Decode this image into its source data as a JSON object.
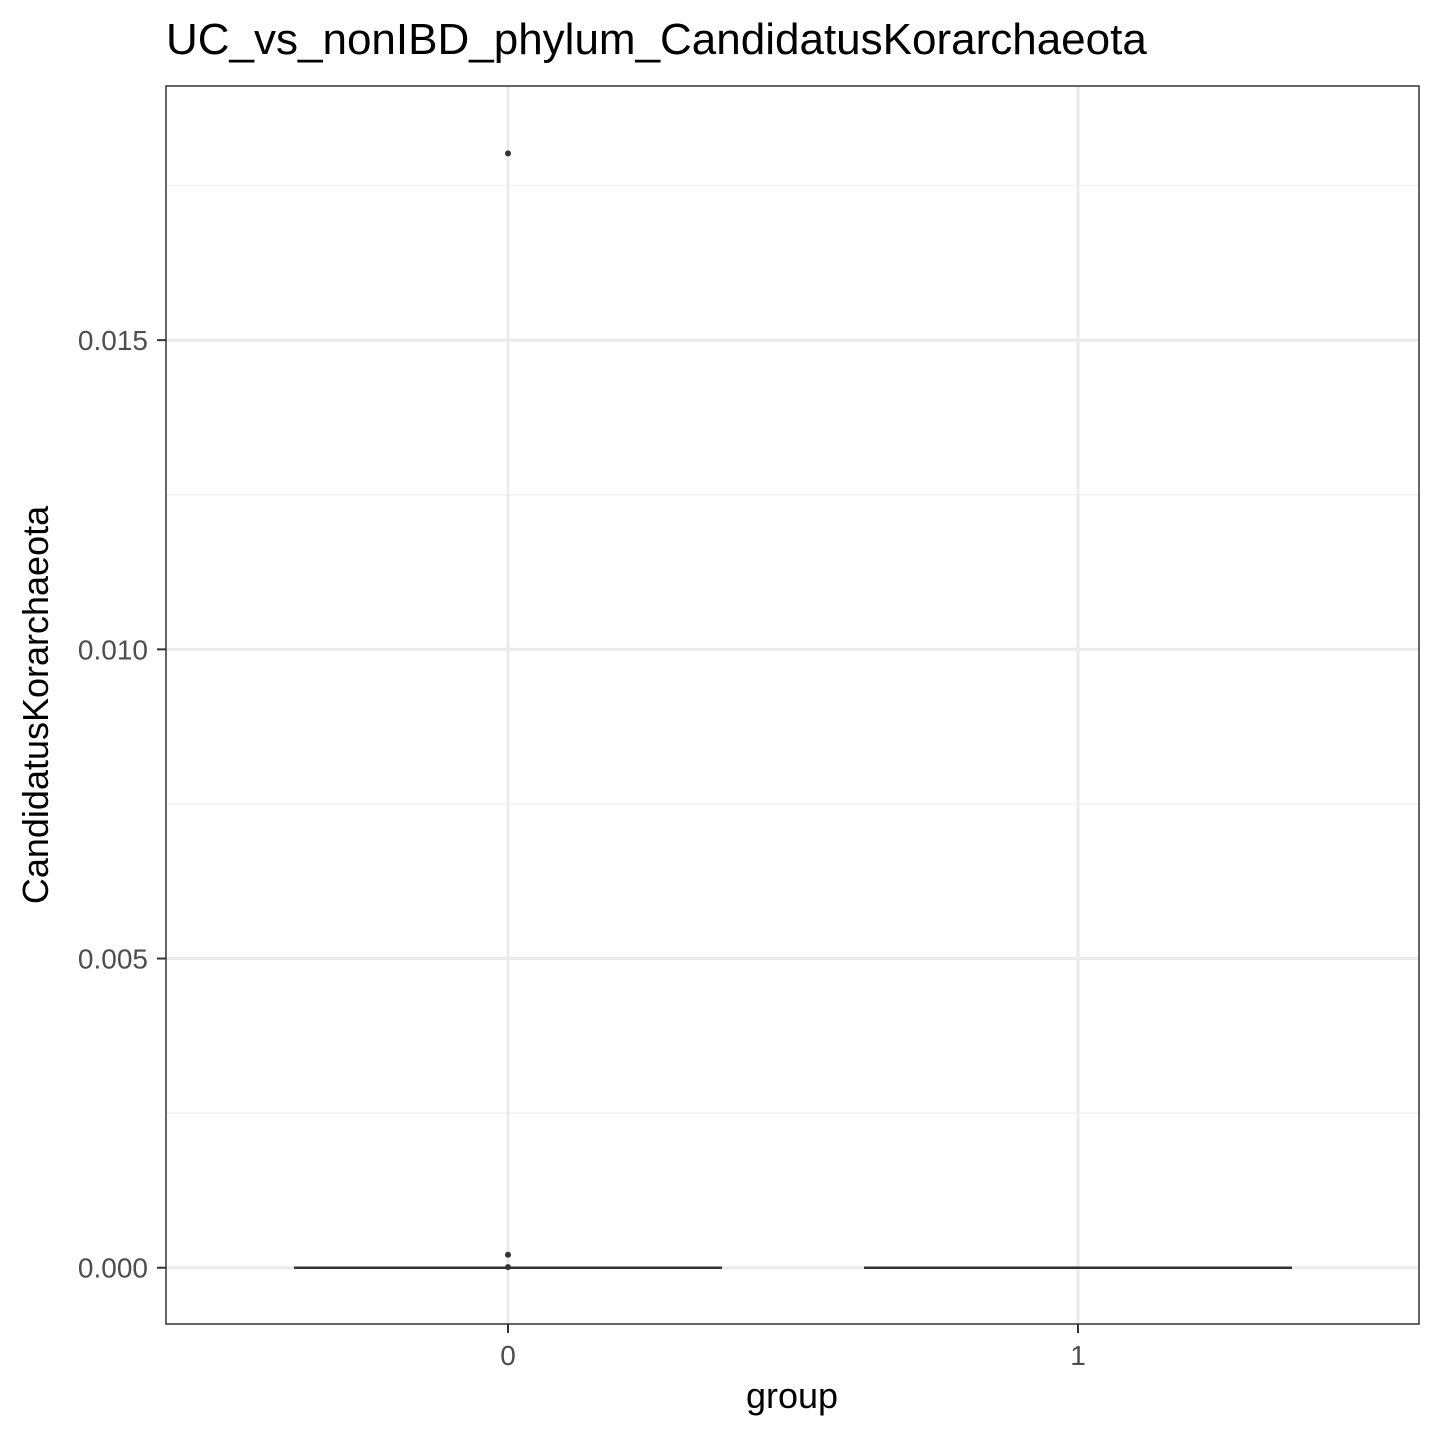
{
  "chart_data": {
    "type": "box",
    "title": "UC_vs_nonIBD_phylum_CandidatusKorarchaeota",
    "xlabel": "group",
    "ylabel": "CandidatusKorarchaeota",
    "categories": [
      "0",
      "1"
    ],
    "ylim": [
      -0.00091,
      0.01911
    ],
    "yticks": [
      0.0,
      0.005,
      0.01,
      0.015
    ],
    "ytick_labels": [
      "0.000",
      "0.005",
      "0.010",
      "0.015"
    ],
    "grid": true,
    "boxes": [
      {
        "category": "0",
        "q1": 0.0,
        "median": 0.0,
        "q3": 0.0,
        "whisker_low": 0.0,
        "whisker_high": 0.0,
        "outliers": [
          0.01802,
          0.00021,
          1e-05
        ]
      },
      {
        "category": "1",
        "q1": 0.0,
        "median": 0.0,
        "q3": 0.0,
        "whisker_low": 0.0,
        "whisker_high": 0.0,
        "outliers": []
      }
    ],
    "colors": {
      "box_line": "#333333",
      "point": "#333333",
      "major_grid": "#ebebeb",
      "minor_grid": "#f2f2f2",
      "panel_border": "#333333"
    }
  }
}
